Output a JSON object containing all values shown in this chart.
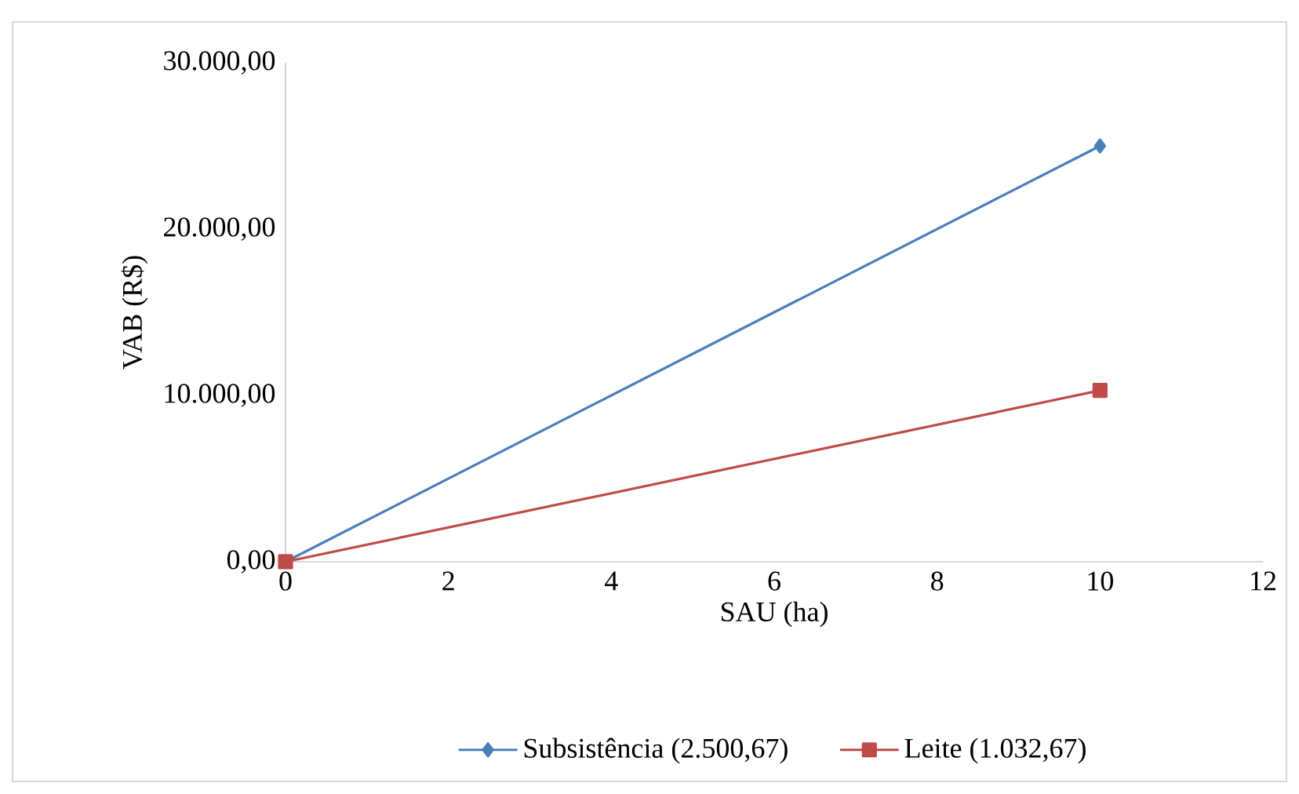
{
  "chart_data": {
    "type": "line",
    "xlabel": "SAU (ha)",
    "ylabel": "VAB (R$)",
    "x": [
      0,
      10
    ],
    "series": [
      {
        "name": "Subsistência (2.500,67)",
        "color": "#4a7ebb",
        "marker": "diamond",
        "values": [
          0,
          25000
        ]
      },
      {
        "name": "Leite (1.032,67)",
        "color": "#be4b48",
        "marker": "square",
        "values": [
          0,
          10300
        ]
      }
    ],
    "xlim": [
      0,
      12
    ],
    "xticks": [
      0,
      2,
      4,
      6,
      8,
      10,
      12
    ],
    "ylim": [
      0,
      30000
    ],
    "yticks": [
      {
        "value": 0,
        "label": "0,00"
      },
      {
        "value": 10000,
        "label": "10.000,00"
      },
      {
        "value": 20000,
        "label": "20.000,00"
      },
      {
        "value": 30000,
        "label": "30.000,00"
      }
    ],
    "grid": false,
    "legend": "bottom",
    "line_style": "solid"
  }
}
